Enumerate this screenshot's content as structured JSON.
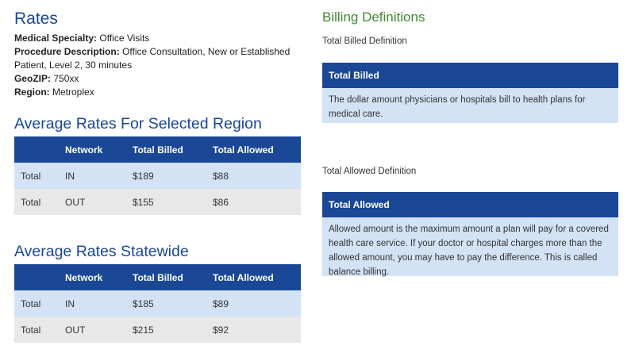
{
  "rates": {
    "title": "Rates",
    "specialty_label": "Medical Specialty:",
    "specialty_value": " Office Visits",
    "procedure_label": "Procedure Description:",
    "procedure_value": " Office Consultation, New or Established Patient, Level 2, 30 minutes",
    "geozip_label": "GeoZIP:",
    "geozip_value": " 750xx",
    "region_label": "Region:",
    "region_value": " Metroplex"
  },
  "region_table": {
    "title": "Average Rates For Selected Region",
    "headers": [
      "",
      "Network",
      "Total Billed",
      "Total Allowed"
    ],
    "rows": [
      [
        "Total",
        "IN",
        "$189",
        "$88"
      ],
      [
        "Total",
        "OUT",
        "$155",
        "$86"
      ]
    ]
  },
  "state_table": {
    "title": "Average Rates Statewide",
    "headers": [
      "",
      "Network",
      "Total Billed",
      "Total Allowed"
    ],
    "rows": [
      [
        "Total",
        "IN",
        "$185",
        "$89"
      ],
      [
        "Total",
        "OUT",
        "$215",
        "$92"
      ]
    ]
  },
  "billing": {
    "title": "Billing Definitions",
    "billed_label": "Total Billed Definition",
    "billed_head": "Total Billed",
    "billed_text": "The dollar amount physicians or hospitals bill to health plans for medical care.",
    "allowed_label": "Total Allowed Definition",
    "allowed_head": "Total Allowed",
    "allowed_text": "Allowed amount is the maximum amount a plan will pay for a covered health care service. If your doctor or hospital charges more than the allowed amount, you may have to pay the difference. This is called balance billing."
  },
  "colors": {
    "header_blue": "#1a4796",
    "row_light_blue": "#d3e2f5",
    "row_gray": "#e8e8e8",
    "billing_green": "#3e8a2e"
  }
}
